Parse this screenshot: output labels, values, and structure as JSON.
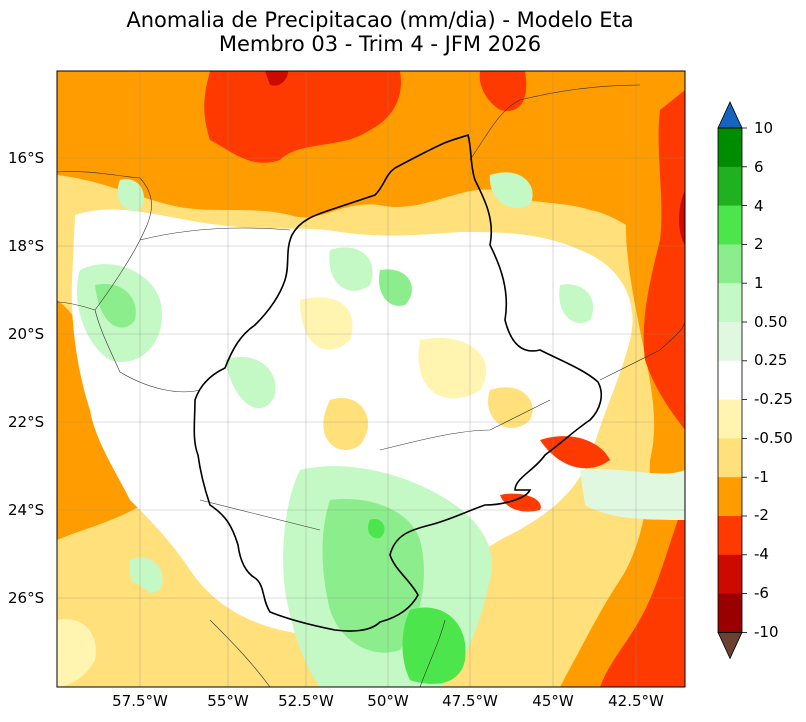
{
  "title": {
    "line1": "Anomalia de Precipitacao (mm/dia) - Modelo Eta",
    "line2": "Membro 03 - Trim 4 - JFM 2026"
  },
  "axes": {
    "lat_ticks": [
      "16°S",
      "18°S",
      "20°S",
      "22°S",
      "24°S",
      "26°S"
    ],
    "lon_ticks": [
      "57.5°W",
      "55°W",
      "52.5°W",
      "50°W",
      "47.5°W",
      "45°W",
      "42.5°W"
    ]
  },
  "colorbar": {
    "labels": [
      "10",
      "6",
      "4",
      "2",
      "1",
      "0.50",
      "0.25",
      "-0.25",
      "-0.50",
      "-1",
      "-2",
      "-4",
      "-6",
      "-10"
    ],
    "colors": {
      "over": "#1565c0",
      "c6_10": "#008c00",
      "c4_6": "#20b020",
      "c2_4": "#4ce64c",
      "c1_2": "#8ced8c",
      "c05_1": "#c4f8c4",
      "c025_05": "#e0f8e0",
      "neutral": "#ffffff",
      "cm025_m05": "#fff4b0",
      "cm05_m1": "#ffe07a",
      "cm1_m2": "#ff9d00",
      "cm2_m4": "#ff3a00",
      "cm4_m6": "#cc0a00",
      "cm6_m10": "#9a0000",
      "under": "#6a4030"
    }
  }
}
